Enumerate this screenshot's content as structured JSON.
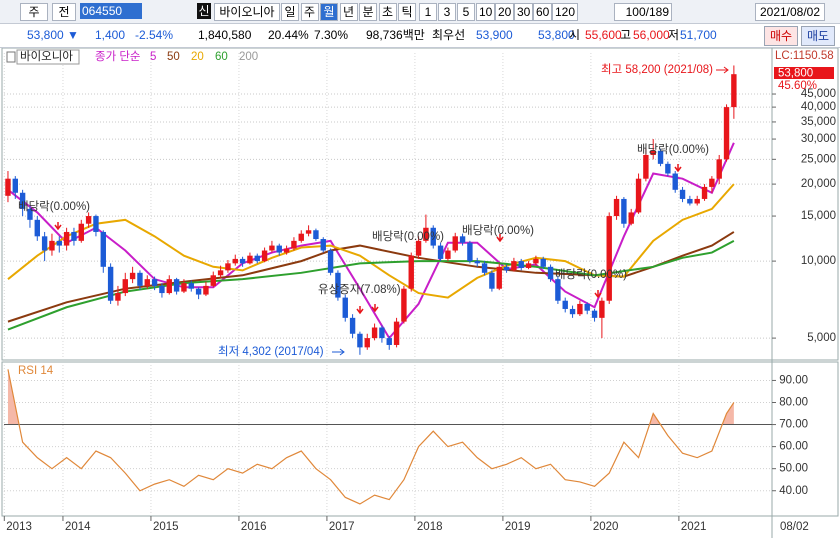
{
  "toolbar": {
    "period": "주",
    "prev": "전",
    "code": "064550",
    "badge": "신",
    "name": "바이오니아",
    "intervals": [
      "일",
      "주",
      "월",
      "년",
      "분",
      "초",
      "틱"
    ],
    "active_interval": 2,
    "minutes": [
      "1",
      "3",
      "5",
      "10",
      "20",
      "30",
      "60",
      "120"
    ],
    "count": "100/189",
    "date": "2021/08/02"
  },
  "quote": {
    "price": "53,800 ▼",
    "change": "1,400",
    "change_pct": "-2.54%",
    "volume": "1,840,580",
    "turnover_pct": "20.44%",
    "ratio": "7.30%",
    "amount": "98,736백만",
    "best_label": "최우선",
    "ask": "53,900",
    "bid": "53,800",
    "open_label": "시",
    "open": "55,600",
    "high_label": "고",
    "high": "56,000",
    "low_label": "저",
    "low": "51,700"
  },
  "buttons": [
    "매수",
    "매도"
  ],
  "chart_data": [
    {
      "type": "candlestick",
      "name": "바이오니아",
      "legend_label": "종가 단순",
      "up_color": "#e8161b",
      "down_color": "#1c5bd6",
      "log_scale": true,
      "grid": true,
      "ylim": [
        4180,
        59500
      ],
      "yticks": [
        {
          "value": 5000,
          "label": "5,000"
        },
        {
          "value": 10000,
          "label": "10,000"
        },
        {
          "value": 15000,
          "label": "15,000"
        },
        {
          "value": 20000,
          "label": "20,000"
        },
        {
          "value": 25000,
          "label": "25,000"
        },
        {
          "value": 30000,
          "label": "30,000"
        },
        {
          "value": 35000,
          "label": "35,000"
        },
        {
          "value": 40000,
          "label": "40,000"
        },
        {
          "value": 45000,
          "label": "45,000"
        }
      ],
      "candles": [
        [
          18000,
          22500,
          17000,
          21000
        ],
        [
          21000,
          21500,
          17500,
          18500
        ],
        [
          18500,
          19000,
          15000,
          16000
        ],
        [
          16000,
          16500,
          13500,
          14500
        ],
        [
          14500,
          15000,
          12000,
          12500
        ],
        [
          12500,
          13000,
          10000,
          11000
        ],
        [
          11000,
          12800,
          10500,
          12000
        ],
        [
          12000,
          12500,
          10800,
          11500
        ],
        [
          11500,
          13500,
          11000,
          13000
        ],
        [
          13000,
          13500,
          11500,
          12000
        ],
        [
          12000,
          14500,
          11800,
          14000
        ],
        [
          14000,
          15500,
          13500,
          15000
        ],
        [
          15000,
          15200,
          12500,
          13000
        ],
        [
          13000,
          13200,
          9000,
          9500
        ],
        [
          9500,
          9800,
          6800,
          7000
        ],
        [
          7000,
          8000,
          6700,
          7500
        ],
        [
          7500,
          9000,
          7300,
          8500
        ],
        [
          8500,
          9500,
          8200,
          9000
        ],
        [
          9000,
          9200,
          7700,
          8000
        ],
        [
          8000,
          8800,
          7800,
          8500
        ],
        [
          8500,
          8700,
          7700,
          8000
        ],
        [
          8000,
          8200,
          7200,
          7500
        ],
        [
          7500,
          8800,
          7400,
          8500
        ],
        [
          8500,
          8600,
          7400,
          7600
        ],
        [
          7600,
          8500,
          7500,
          8200
        ],
        [
          8200,
          8400,
          7600,
          7800
        ],
        [
          7800,
          7900,
          7100,
          7400
        ],
        [
          7400,
          8300,
          7300,
          8000
        ],
        [
          8000,
          9100,
          7900,
          8800
        ],
        [
          8800,
          9600,
          8600,
          9200
        ],
        [
          9200,
          10100,
          9000,
          9800
        ],
        [
          9800,
          10600,
          9600,
          10200
        ],
        [
          10200,
          10400,
          9500,
          9800
        ],
        [
          9800,
          10800,
          9700,
          10500
        ],
        [
          10500,
          10700,
          9800,
          10000
        ],
        [
          10000,
          11300,
          9900,
          11000
        ],
        [
          11000,
          12000,
          10800,
          11500
        ],
        [
          11500,
          11700,
          10500,
          10800
        ],
        [
          10800,
          11500,
          10600,
          11200
        ],
        [
          11200,
          12400,
          11000,
          12000
        ],
        [
          12000,
          13200,
          11800,
          12800
        ],
        [
          12800,
          13800,
          12500,
          13200
        ],
        [
          13200,
          13400,
          12000,
          12200
        ],
        [
          12200,
          12400,
          10800,
          11000
        ],
        [
          11000,
          11200,
          8800,
          9000
        ],
        [
          9000,
          9200,
          7000,
          7200
        ],
        [
          7200,
          7400,
          5800,
          6000
        ],
        [
          6000,
          6200,
          5000,
          5200
        ],
        [
          5200,
          5300,
          4302,
          4600
        ],
        [
          4600,
          5200,
          4500,
          5000
        ],
        [
          5000,
          5700,
          4900,
          5500
        ],
        [
          5500,
          5600,
          4800,
          5000
        ],
        [
          5000,
          5100,
          4500,
          4700
        ],
        [
          4700,
          6000,
          4600,
          5800
        ],
        [
          5800,
          8000,
          5700,
          7800
        ],
        [
          7800,
          10800,
          7600,
          10500
        ],
        [
          10500,
          12500,
          10200,
          12000
        ],
        [
          12000,
          15200,
          11800,
          13500
        ],
        [
          13500,
          13800,
          11200,
          11500
        ],
        [
          11500,
          11800,
          10000,
          10200
        ],
        [
          10200,
          11300,
          10000,
          11000
        ],
        [
          11000,
          12900,
          10800,
          12500
        ],
        [
          12500,
          12800,
          11500,
          11800
        ],
        [
          11800,
          12000,
          9800,
          10000
        ],
        [
          10000,
          10300,
          9500,
          9800
        ],
        [
          9800,
          10000,
          8800,
          9000
        ],
        [
          9000,
          9200,
          7600,
          7800
        ],
        [
          7800,
          9800,
          7700,
          9500
        ],
        [
          9500,
          9700,
          9000,
          9200
        ],
        [
          9200,
          10300,
          9100,
          10000
        ],
        [
          10000,
          10200,
          9200,
          9400
        ],
        [
          9400,
          10000,
          9300,
          9800
        ],
        [
          9800,
          10500,
          9600,
          10200
        ],
        [
          10200,
          10400,
          9300,
          9500
        ],
        [
          9500,
          9700,
          8300,
          8500
        ],
        [
          8500,
          8700,
          6800,
          7000
        ],
        [
          7000,
          7200,
          6300,
          6500
        ],
        [
          6500,
          6700,
          6000,
          6200
        ],
        [
          6200,
          7000,
          6100,
          6800
        ],
        [
          6800,
          6900,
          6200,
          6400
        ],
        [
          6400,
          6500,
          5800,
          6000
        ],
        [
          6000,
          7200,
          5000,
          7000
        ],
        [
          7000,
          15500,
          6800,
          15000
        ],
        [
          15000,
          18000,
          14500,
          17500
        ],
        [
          17500,
          17800,
          13500,
          14000
        ],
        [
          14000,
          16000,
          13800,
          15500
        ],
        [
          15500,
          22000,
          15300,
          21000
        ],
        [
          21000,
          27500,
          20500,
          26000
        ],
        [
          26000,
          30000,
          25000,
          27000
        ],
        [
          27000,
          27500,
          23500,
          24000
        ],
        [
          24000,
          24500,
          21500,
          22000
        ],
        [
          22000,
          22500,
          18500,
          19000
        ],
        [
          19000,
          19500,
          17000,
          17500
        ],
        [
          17500,
          18000,
          16500,
          16800
        ],
        [
          16800,
          18000,
          16500,
          17500
        ],
        [
          17500,
          20000,
          17200,
          19500
        ],
        [
          19500,
          21500,
          18500,
          21000
        ],
        [
          21000,
          26000,
          20000,
          25000
        ],
        [
          25000,
          41000,
          24500,
          40000
        ],
        [
          40000,
          58200,
          36000,
          53800
        ]
      ],
      "ma_series": [
        {
          "name": "5",
          "color": "#c81ec8",
          "x": [
            0,
            4,
            8,
            12,
            16,
            20,
            24,
            28,
            32,
            36,
            40,
            44,
            48,
            52,
            56,
            60,
            64,
            68,
            72,
            76,
            80,
            84,
            88,
            92,
            96,
            99
          ],
          "values": [
            19000,
            15500,
            11800,
            13500,
            11000,
            8500,
            7900,
            7900,
            9800,
            10800,
            11500,
            12000,
            7800,
            5000,
            6800,
            11800,
            11800,
            9300,
            9700,
            7600,
            6600,
            12500,
            22000,
            21000,
            18500,
            29000
          ]
        },
        {
          "name": "50",
          "color": "#8b3a0f",
          "x": [
            0,
            8,
            16,
            24,
            32,
            40,
            44,
            48,
            56,
            64,
            72,
            80,
            84,
            88,
            92,
            96,
            99
          ],
          "values": [
            5800,
            6900,
            7800,
            8300,
            8800,
            10000,
            11000,
            11500,
            10300,
            9500,
            9000,
            8800,
            8700,
            9500,
            10500,
            11500,
            13000
          ]
        },
        {
          "name": "20",
          "color": "#e8a800",
          "x": [
            0,
            4,
            8,
            12,
            16,
            20,
            24,
            28,
            32,
            36,
            40,
            44,
            48,
            52,
            56,
            60,
            64,
            68,
            72,
            76,
            80,
            84,
            88,
            92,
            96,
            99
          ],
          "values": [
            8500,
            10500,
            12500,
            14000,
            14500,
            12500,
            10500,
            9500,
            9200,
            10300,
            11300,
            11500,
            10500,
            8800,
            7500,
            7200,
            8600,
            9600,
            10300,
            10000,
            8800,
            8700,
            12000,
            14500,
            16000,
            20000
          ]
        },
        {
          "name": "60",
          "color": "#2ea02e",
          "x": [
            0,
            8,
            16,
            24,
            32,
            40,
            48,
            56,
            64,
            72,
            80,
            88,
            92,
            96,
            99
          ],
          "values": [
            5400,
            6600,
            7600,
            8200,
            8500,
            9000,
            9800,
            10000,
            10000,
            9500,
            8800,
            9500,
            10300,
            10800,
            12000
          ]
        },
        {
          "name": "200",
          "color": "#999999",
          "x": [],
          "values": []
        }
      ],
      "annotations": [
        {
          "text": "최고 58,200 (2021/08)",
          "color": "#e8161b"
        },
        {
          "text": "최저 4,302 (2017/04)",
          "color": "#1c5bd6"
        },
        {
          "text": "배당락(0.00%)",
          "color": "#333333"
        },
        {
          "text": "배당락(0.00%)",
          "color": "#333333"
        },
        {
          "text": "배당락(0.00%)",
          "color": "#333333"
        },
        {
          "text": "배당락(0.00%)",
          "color": "#333333"
        },
        {
          "text": "배당락(0.00%)",
          "color": "#333333"
        },
        {
          "text": "유상증자(7.08%)",
          "color": "#333333"
        }
      ],
      "side_labels": [
        "LC:1150.58",
        "53,800",
        "45.60%"
      ]
    },
    {
      "type": "line",
      "title": "RSI 14",
      "color": "#e0883a",
      "fill_color": "#f5b8a8",
      "reference": 70,
      "grid": true,
      "xlim": [
        -0.54,
        104.2
      ],
      "xticks": [
        {
          "value": -0.5,
          "label": "2013"
        },
        {
          "value": 7.5,
          "label": "2014"
        },
        {
          "value": 19.5,
          "label": "2015"
        },
        {
          "value": 31.5,
          "label": "2016"
        },
        {
          "value": 43.5,
          "label": "2017"
        },
        {
          "value": 55.5,
          "label": "2018"
        },
        {
          "value": 67.5,
          "label": "2019"
        },
        {
          "value": 79.5,
          "label": "2020"
        },
        {
          "value": 91.5,
          "label": "2021"
        }
      ],
      "last_date": "08/02",
      "ylim": [
        29,
        97
      ],
      "yticks": [
        {
          "value": 40,
          "label": "40.00"
        },
        {
          "value": 50,
          "label": "50.00"
        },
        {
          "value": 60,
          "label": "60.00"
        },
        {
          "value": 70,
          "label": "70.00"
        },
        {
          "value": 80,
          "label": "80.00"
        },
        {
          "value": 90,
          "label": "90.00"
        }
      ],
      "x": [
        0,
        2,
        4,
        6,
        8,
        10,
        12,
        14,
        16,
        18,
        20,
        22,
        24,
        26,
        28,
        30,
        32,
        34,
        36,
        38,
        40,
        42,
        44,
        46,
        48,
        50,
        52,
        54,
        56,
        58,
        60,
        62,
        64,
        66,
        68,
        70,
        72,
        74,
        76,
        78,
        80,
        82,
        84,
        86,
        88,
        90,
        92,
        94,
        96,
        98,
        99
      ],
      "values": [
        95,
        62,
        55,
        50,
        55,
        50,
        58,
        55,
        48,
        40,
        43,
        45,
        42,
        47,
        45,
        50,
        48,
        52,
        50,
        55,
        58,
        50,
        45,
        37,
        34,
        38,
        36,
        45,
        60,
        67,
        60,
        62,
        55,
        50,
        52,
        55,
        50,
        52,
        45,
        44,
        42,
        48,
        62,
        55,
        75,
        65,
        57,
        55,
        58,
        75,
        80
      ]
    }
  ]
}
